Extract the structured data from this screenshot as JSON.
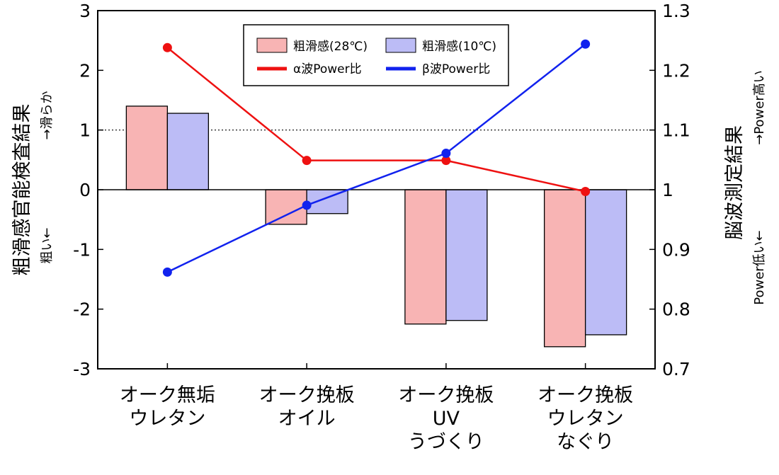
{
  "chart_data": {
    "type": "bar",
    "categories": [
      [
        "オーク無垢",
        "ウレタン"
      ],
      [
        "オーク挽板",
        "オイル"
      ],
      [
        "オーク挽板",
        "UV",
        "うづくり"
      ],
      [
        "オーク挽板",
        "ウレタン",
        "なぐり"
      ]
    ],
    "bar_series": [
      {
        "name": "粗滑感(28℃)",
        "values": [
          1.4,
          -0.58,
          -2.25,
          -2.63
        ],
        "fill": "#f8b4b4",
        "stroke": "#000000"
      },
      {
        "name": "粗滑感(10℃)",
        "values": [
          1.28,
          -0.4,
          -2.19,
          -2.43
        ],
        "fill": "#bcbcf6",
        "stroke": "#000000"
      }
    ],
    "line_series": [
      {
        "name": "α波Power比",
        "values": [
          1.238,
          1.049,
          1.049,
          0.997
        ],
        "color": "#ee1111"
      },
      {
        "name": "β波Power比",
        "values": [
          0.862,
          0.974,
          1.061,
          1.244
        ],
        "color": "#1122ee"
      }
    ],
    "y_left": {
      "label": "粗滑感官能検査結果",
      "sub_top": "→滑らか",
      "sub_bottom": "粗い←",
      "ylim": [
        -3,
        3
      ],
      "ticks": [
        -3,
        -2,
        -1,
        0,
        1,
        2,
        3
      ],
      "tick_labels": [
        "-3",
        "-2",
        "-1",
        "0",
        "1",
        "2",
        "3"
      ]
    },
    "y_right": {
      "label": "脳波測定結果",
      "sub_top": "→Power高い",
      "sub_bottom": "Power低い←",
      "ylim": [
        0.7,
        1.3
      ],
      "ticks": [
        0.7,
        0.8,
        0.9,
        1.0,
        1.1,
        1.2,
        1.3
      ],
      "tick_labels": [
        "0.7",
        "0.8",
        "0.9",
        "1",
        "1.1",
        "1.2",
        "1.3"
      ]
    },
    "reference_line": {
      "y_left": 1,
      "style": "dotted"
    },
    "zero_line": true,
    "legend_position": "top-center"
  }
}
